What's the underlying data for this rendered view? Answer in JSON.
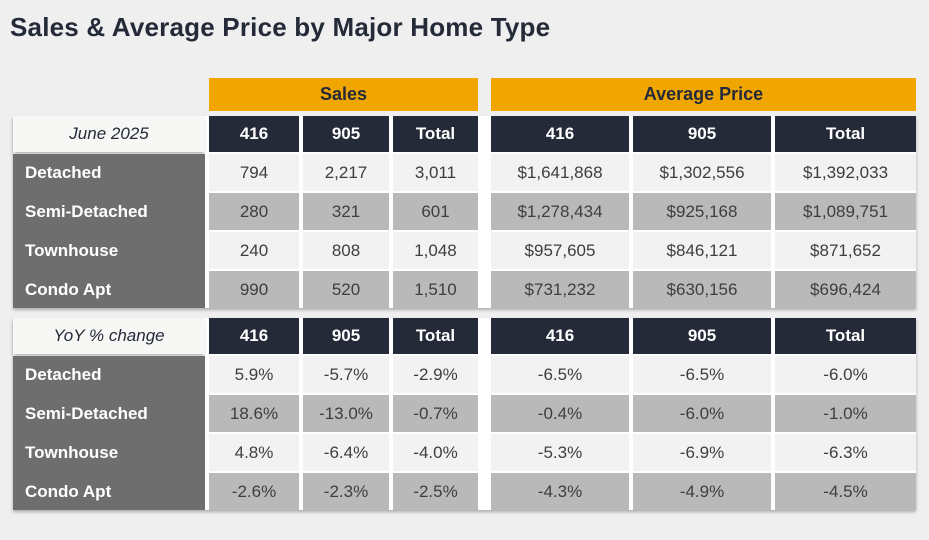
{
  "title": "Sales & Average Price by Major Home Type",
  "colors": {
    "accent_orange": "#F0A500",
    "header_dark": "#242A38",
    "row_label_gray": "#6E6E6E",
    "row_light": "#F2F2F2",
    "row_shaded": "#B9B9B9",
    "page_bg": "#EFEFEF",
    "text_dark": "#3E3E3E"
  },
  "chart_data": {
    "type": "table",
    "title": "Sales & Average Price by Major Home Type",
    "group_headers": [
      "Sales",
      "Average Price"
    ],
    "column_headers": [
      "416",
      "905",
      "Total"
    ],
    "sections": [
      {
        "corner_label": "June 2025",
        "rows": [
          {
            "label": "Detached",
            "sales": [
              "794",
              "2,217",
              "3,011"
            ],
            "average_price": [
              "$1,641,868",
              "$1,302,556",
              "$1,392,033"
            ]
          },
          {
            "label": "Semi-Detached",
            "sales": [
              "280",
              "321",
              "601"
            ],
            "average_price": [
              "$1,278,434",
              "$925,168",
              "$1,089,751"
            ]
          },
          {
            "label": "Townhouse",
            "sales": [
              "240",
              "808",
              "1,048"
            ],
            "average_price": [
              "$957,605",
              "$846,121",
              "$871,652"
            ]
          },
          {
            "label": "Condo Apt",
            "sales": [
              "990",
              "520",
              "1,510"
            ],
            "average_price": [
              "$731,232",
              "$630,156",
              "$696,424"
            ]
          }
        ]
      },
      {
        "corner_label": "YoY % change",
        "rows": [
          {
            "label": "Detached",
            "sales": [
              "5.9%",
              "-5.7%",
              "-2.9%"
            ],
            "average_price": [
              "-6.5%",
              "-6.5%",
              "-6.0%"
            ]
          },
          {
            "label": "Semi-Detached",
            "sales": [
              "18.6%",
              "-13.0%",
              "-0.7%"
            ],
            "average_price": [
              "-0.4%",
              "-6.0%",
              "-1.0%"
            ]
          },
          {
            "label": "Townhouse",
            "sales": [
              "4.8%",
              "-6.4%",
              "-4.0%"
            ],
            "average_price": [
              "-5.3%",
              "-6.9%",
              "-6.3%"
            ]
          },
          {
            "label": "Condo Apt",
            "sales": [
              "-2.6%",
              "-2.3%",
              "-2.5%"
            ],
            "average_price": [
              "-4.3%",
              "-4.9%",
              "-4.5%"
            ]
          }
        ]
      }
    ]
  }
}
